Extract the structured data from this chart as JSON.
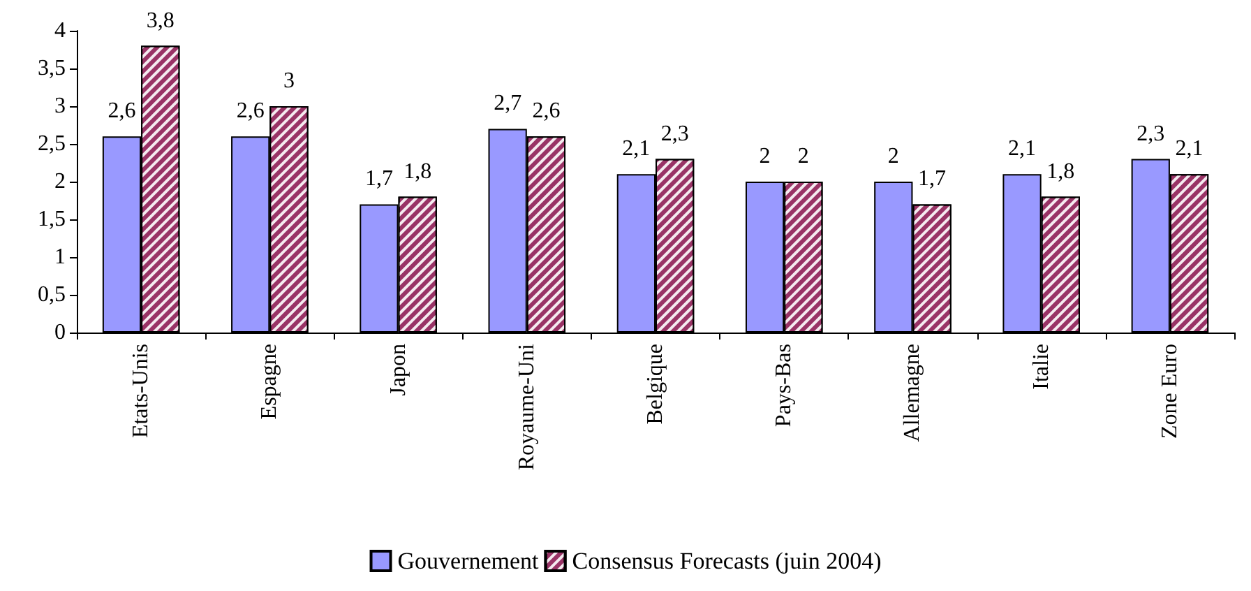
{
  "chart_data": {
    "type": "bar",
    "categories": [
      "Etats-Unis",
      "Espagne",
      "Japon",
      "Royaume-Uni",
      "Belgique",
      "Pays-Bas",
      "Allemagne",
      "Italie",
      "Zone Euro"
    ],
    "series": [
      {
        "name": "Gouvernement",
        "color": "#9999ff",
        "values": [
          2.6,
          2.6,
          1.7,
          2.7,
          2.1,
          2,
          2,
          2.1,
          2.3
        ],
        "value_labels": [
          "2,6",
          "2,6",
          "1,7",
          "2,7",
          "2,1",
          "2",
          "2",
          "2,1",
          "2,3"
        ]
      },
      {
        "name": "Consensus Forecasts (juin 2004)",
        "color": "#993366",
        "values": [
          3.8,
          3,
          1.8,
          2.6,
          2.3,
          2,
          1.7,
          1.8,
          2.1
        ],
        "value_labels": [
          "3,8",
          "3",
          "1,8",
          "2,6",
          "2,3",
          "2",
          "1,7",
          "1,8",
          "2,1"
        ]
      }
    ],
    "ylim": [
      0,
      4
    ],
    "yticks": [
      0,
      {
        "value": 0.5,
        "label": "0,5"
      },
      1,
      {
        "value": 1.5,
        "label": "1,5"
      },
      2,
      {
        "value": 2.5,
        "label": "2,5"
      },
      3,
      {
        "value": 3.5,
        "label": "3,5"
      },
      4
    ],
    "grid": false,
    "legend": "bottom"
  }
}
